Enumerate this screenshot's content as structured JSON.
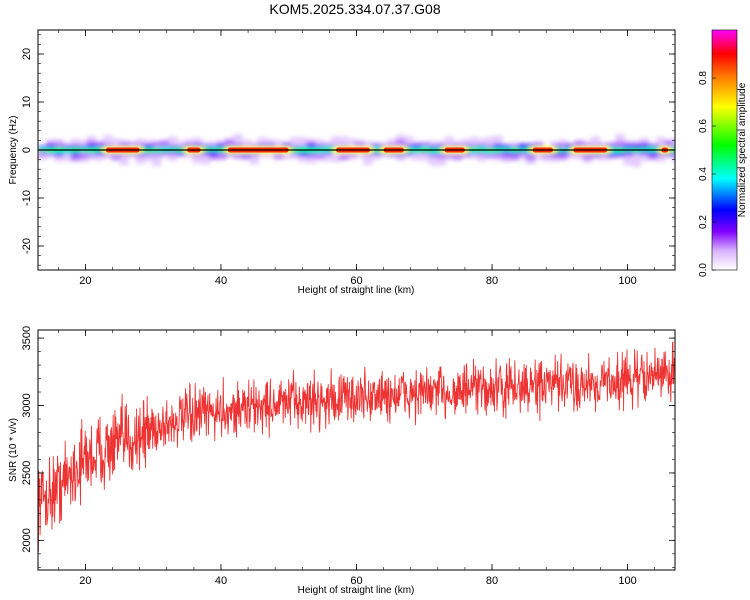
{
  "title": "KOM5.2025.334.07.37.G08",
  "chart_data": [
    {
      "type": "heatmap",
      "xlabel": "Height of straight line (km)",
      "ylabel": "Frequency (Hz)",
      "xlim": [
        13,
        107
      ],
      "ylim": [
        -25,
        25
      ],
      "xticks": [
        20,
        40,
        60,
        80,
        100
      ],
      "yticks": [
        -20,
        -10,
        0,
        10,
        20
      ],
      "grid": false,
      "colorbar": {
        "label": "Normalized spectral amplitude",
        "range": [
          0,
          1
        ],
        "ticks": [
          "0.0",
          "0.2",
          "0.4",
          "0.6",
          "0.8"
        ],
        "colormap": [
          "#ffffff",
          "#d9b3ff",
          "#8000ff",
          "#0000ff",
          "#00ffff",
          "#00ff00",
          "#ffff00",
          "#ff8000",
          "#ff0000",
          "#ff00ff"
        ]
      },
      "ridge": {
        "freq_hz": [
          0.0,
          0.0,
          0.0,
          0.0,
          0.0,
          0.0,
          0.0,
          0.0,
          0.0,
          0.0,
          0.0
        ],
        "x_km": [
          14,
          24,
          34,
          44,
          54,
          64,
          74,
          84,
          94,
          100,
          106
        ],
        "hot_segments_km": [
          [
            23,
            28
          ],
          [
            35,
            37
          ],
          [
            41,
            50
          ],
          [
            57,
            62
          ],
          [
            64,
            67
          ],
          [
            73,
            76
          ],
          [
            86,
            89
          ],
          [
            92,
            97
          ],
          [
            105,
            106
          ]
        ]
      }
    },
    {
      "type": "line",
      "xlabel": "Height of straight line (km)",
      "ylabel": "SNR (10 * v/v)",
      "xlim": [
        13,
        107
      ],
      "ylim": [
        1780,
        3560
      ],
      "xticks": [
        20,
        40,
        60,
        80,
        100
      ],
      "yticks": [
        2000,
        2500,
        3000,
        3500
      ],
      "color": "#ee3333",
      "grid": false,
      "trend": {
        "x": [
          13,
          15,
          17,
          20,
          25,
          30,
          35,
          40,
          45,
          50,
          60,
          70,
          80,
          90,
          100,
          107
        ],
        "y": [
          2300,
          2350,
          2450,
          2600,
          2720,
          2830,
          2910,
          2960,
          2990,
          3020,
          3060,
          3090,
          3120,
          3150,
          3190,
          3250
        ]
      },
      "noise_amplitude": 150,
      "samples": 1500
    }
  ]
}
